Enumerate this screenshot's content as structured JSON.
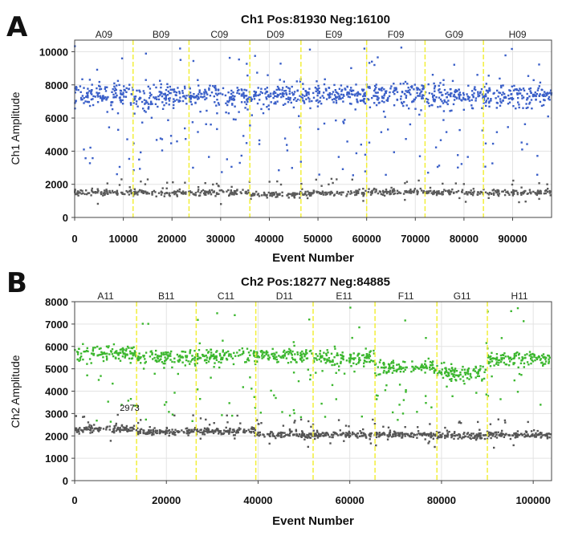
{
  "chart_data": [
    {
      "type": "scatter",
      "panel": "A",
      "title": "Ch1 Pos:81930 Neg:16100",
      "xlabel": "Event Number",
      "ylabel": "Ch1 Amplitude",
      "xlim": [
        0,
        98000
      ],
      "ylim": [
        0,
        10700
      ],
      "xticks": [
        0,
        10000,
        20000,
        30000,
        40000,
        50000,
        60000,
        70000,
        80000,
        90000
      ],
      "yticks": [
        0,
        2000,
        4000,
        6000,
        8000,
        10000
      ],
      "wells": [
        "A09",
        "B09",
        "C09",
        "D09",
        "E09",
        "F09",
        "G09",
        "H09"
      ],
      "well_bounds": [
        0,
        12000,
        23500,
        36000,
        46500,
        60000,
        72000,
        84000,
        98000
      ],
      "grid": true,
      "divider_color": "#f2ef3a",
      "series": [
        {
          "color": "#3a5fc8",
          "kind": "positive",
          "band_center": [
            7400,
            7300,
            7300,
            7350,
            7350,
            7450,
            7350,
            7350
          ],
          "band_spread": 650,
          "tail_min": 2500,
          "points": 1200
        },
        {
          "color": "#5a5a5a",
          "kind": "negative",
          "band_center": [
            1500,
            1500,
            1500,
            1350,
            1450,
            1550,
            1500,
            1500
          ],
          "band_spread": 150,
          "points": 700
        }
      ],
      "annotations": []
    },
    {
      "type": "scatter",
      "panel": "B",
      "title": "Ch2 Pos:18277 Neg:84885",
      "xlabel": "Event Number",
      "ylabel": "Ch2 Amplitude",
      "xlim": [
        0,
        104000
      ],
      "ylim": [
        0,
        8000
      ],
      "xticks": [
        0,
        20000,
        40000,
        60000,
        80000,
        100000
      ],
      "yticks": [
        0,
        1000,
        2000,
        3000,
        4000,
        5000,
        6000,
        7000,
        8000
      ],
      "wells": [
        "A11",
        "B11",
        "C11",
        "D11",
        "E11",
        "F11",
        "G11",
        "H11"
      ],
      "well_bounds": [
        0,
        13500,
        26500,
        39500,
        52000,
        65500,
        79000,
        90000,
        104000
      ],
      "grid": true,
      "divider_color": "#f2ef3a",
      "series": [
        {
          "color": "#3cb72f",
          "kind": "positive",
          "band_center": [
            5700,
            5500,
            5550,
            5600,
            5450,
            5100,
            4850,
            5450
          ],
          "band_spread": 300,
          "tail_min": 2600,
          "points": 1000
        },
        {
          "color": "#555555",
          "kind": "negative",
          "band_center": [
            2300,
            2200,
            2200,
            2050,
            2050,
            2050,
            2000,
            2050
          ],
          "band_spread": 120,
          "points": 900
        }
      ],
      "annotations": [
        {
          "text": "2973",
          "x": 12000,
          "y": 2973
        }
      ]
    }
  ]
}
